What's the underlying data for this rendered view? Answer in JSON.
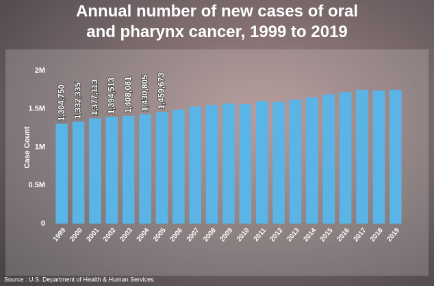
{
  "chart_data": {
    "type": "bar",
    "title": "Annual number of new cases of oral and pharynx cancer, 1999 to 2019",
    "y_label": "Case Count",
    "source": "Source : U.S. Department of Health & Human Services",
    "categories": [
      "1999",
      "2000",
      "2001",
      "2002",
      "2003",
      "2004",
      "2005",
      "2006",
      "2007",
      "2008",
      "2009",
      "2010",
      "2011",
      "2012",
      "2013",
      "2014",
      "2015",
      "2016",
      "2017",
      "2018",
      "2019"
    ],
    "values": [
      1304750,
      1332335,
      1377113,
      1394513,
      1408081,
      1430805,
      1459673,
      1490000,
      1530000,
      1550000,
      1570000,
      1560000,
      1600000,
      1590000,
      1620000,
      1650000,
      1690000,
      1720000,
      1750000,
      1740000,
      1750000
    ],
    "value_labels": [
      "1,304,750",
      "1,332,335",
      "1,377,113",
      "1,394,513",
      "1,408,081",
      "1,430,805",
      "1,459,673",
      null,
      null,
      null,
      null,
      null,
      null,
      null,
      null,
      null,
      null,
      null,
      null,
      null,
      null
    ],
    "color": "#5bb4e6",
    "ylim": [
      0,
      2000000
    ],
    "yticks": [
      0,
      {
        "value": 500000,
        "label": "0.5M"
      },
      {
        "value": 1000000,
        "label": "1M"
      },
      {
        "value": 1500000,
        "label": "1.5M"
      },
      {
        "value": 2000000,
        "label": "2M"
      }
    ],
    "grid": false
  }
}
